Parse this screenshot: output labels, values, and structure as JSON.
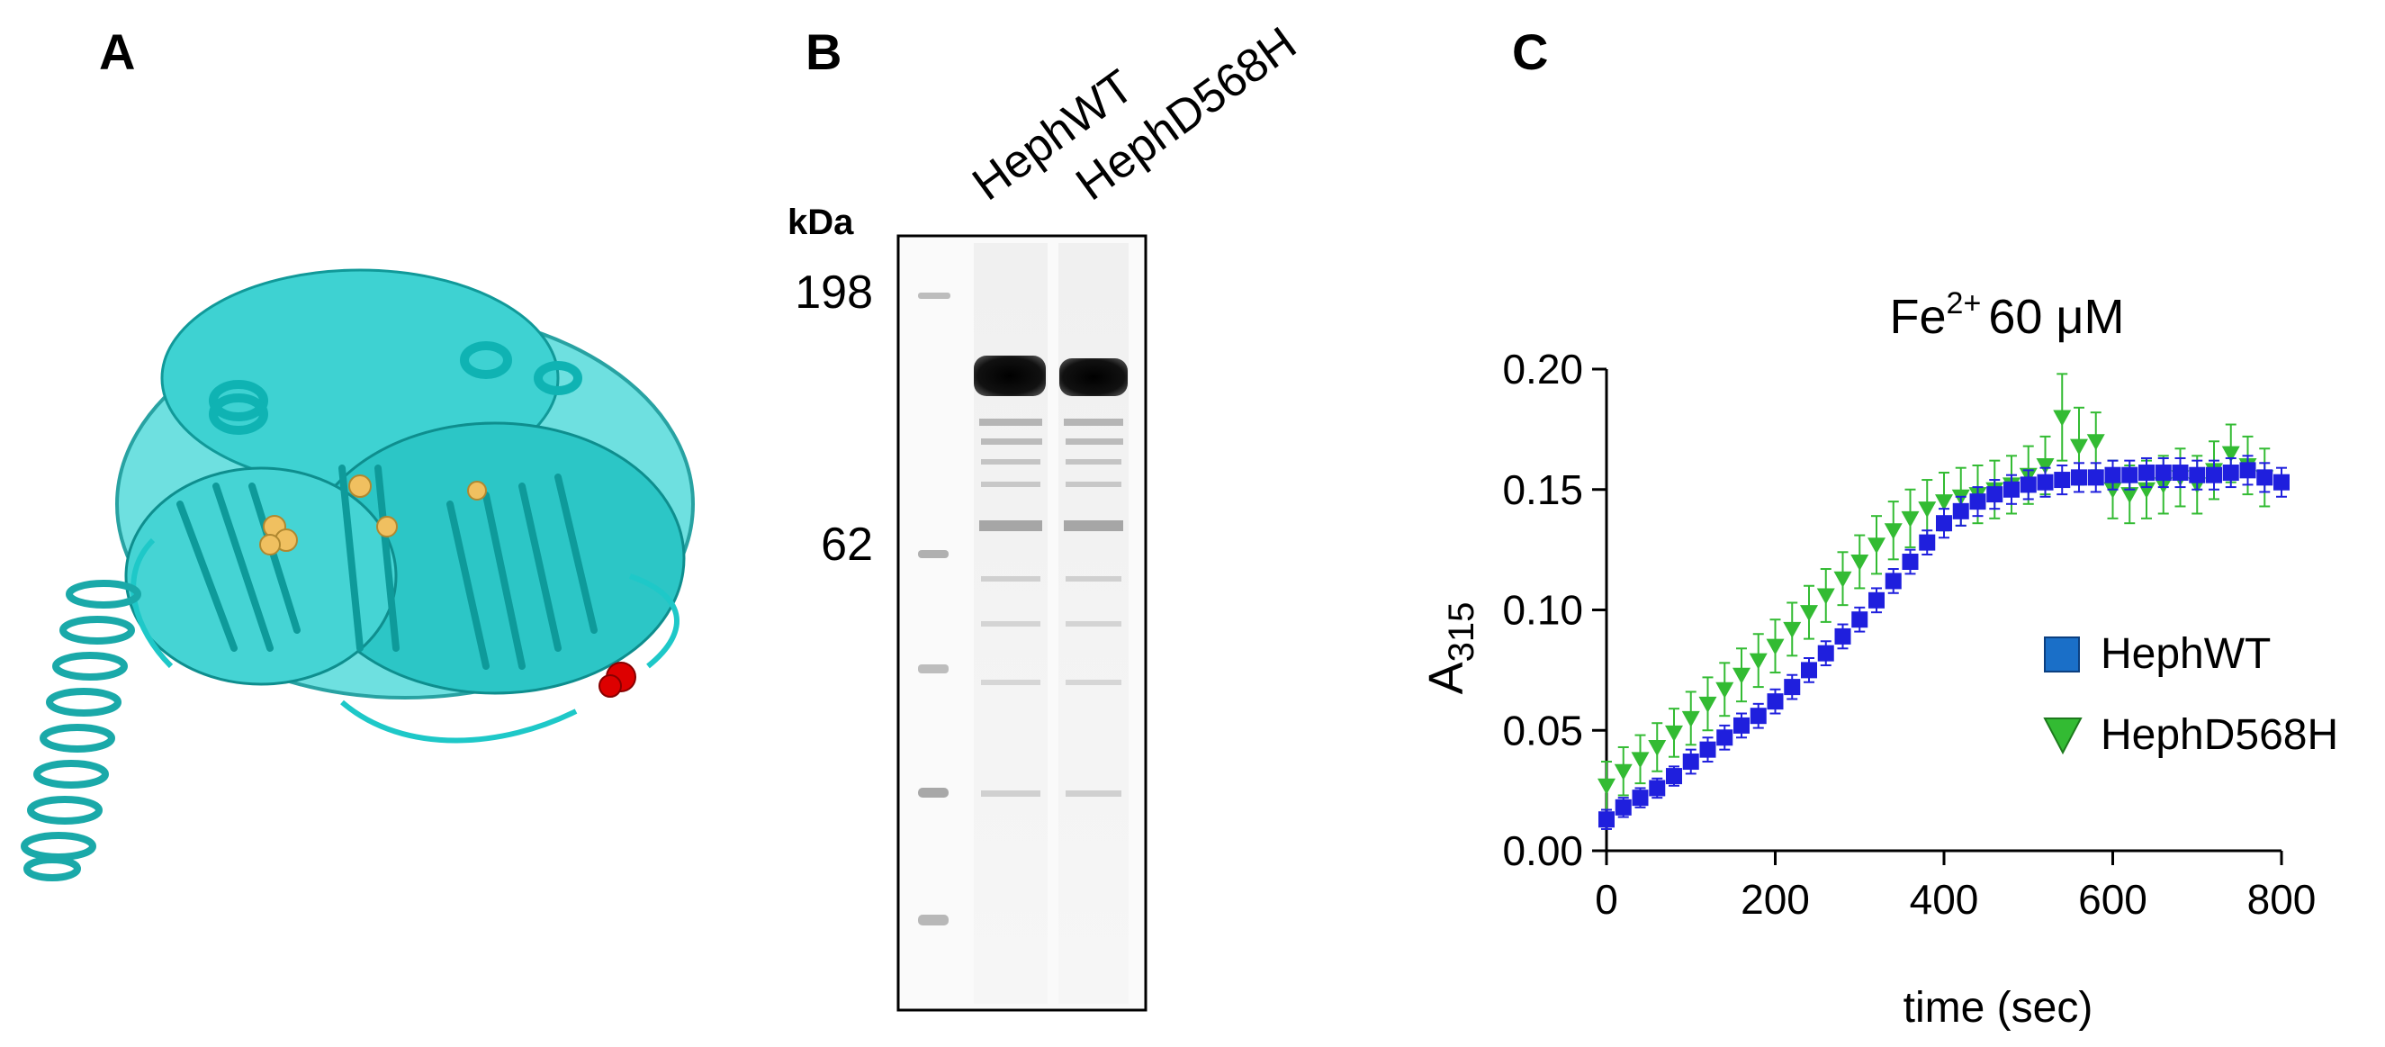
{
  "panels": {
    "a": {
      "letter": "A"
    },
    "b": {
      "letter": "B",
      "lanes": [
        "HephWT",
        "HephD568H"
      ],
      "unit": "kDa",
      "markers": [
        "198",
        "62"
      ]
    },
    "c": {
      "letter": "C"
    }
  },
  "colors": {
    "protein_cartoon": "#1ec8c8",
    "copper_sites": "#f0c060",
    "mutation_site": "#dd0000",
    "series_wt": "#1f1fdd",
    "series_mut": "#33bb33"
  },
  "chart_data": {
    "type": "scatter",
    "title_base": "Fe",
    "title_sup": "2+",
    "title_rest": "60 μM",
    "xlabel": "time (sec)",
    "ylabel_main": "A",
    "ylabel_sub": "315",
    "xlim": [
      0,
      800
    ],
    "ylim": [
      0,
      0.2
    ],
    "x_ticks": [
      "0",
      "200",
      "400",
      "600",
      "800"
    ],
    "y_ticks": [
      "0.00",
      "0.05",
      "0.10",
      "0.15",
      "0.20"
    ],
    "legend_position": "right",
    "series": [
      {
        "name": "HephWT",
        "marker": "square",
        "x": [
          0,
          20,
          40,
          60,
          80,
          100,
          120,
          140,
          160,
          180,
          200,
          220,
          240,
          260,
          280,
          300,
          320,
          340,
          360,
          380,
          400,
          420,
          440,
          460,
          480,
          500,
          520,
          540,
          560,
          580,
          600,
          620,
          640,
          660,
          680,
          700,
          720,
          740,
          760,
          780,
          800
        ],
        "y": [
          0.013,
          0.018,
          0.022,
          0.026,
          0.031,
          0.037,
          0.042,
          0.047,
          0.052,
          0.056,
          0.062,
          0.068,
          0.075,
          0.082,
          0.089,
          0.096,
          0.104,
          0.112,
          0.12,
          0.128,
          0.136,
          0.141,
          0.145,
          0.148,
          0.15,
          0.152,
          0.153,
          0.154,
          0.155,
          0.155,
          0.156,
          0.156,
          0.157,
          0.157,
          0.157,
          0.156,
          0.156,
          0.157,
          0.158,
          0.155,
          0.153
        ],
        "err": [
          0.004,
          0.004,
          0.004,
          0.004,
          0.004,
          0.005,
          0.005,
          0.005,
          0.005,
          0.005,
          0.005,
          0.005,
          0.005,
          0.005,
          0.005,
          0.005,
          0.005,
          0.005,
          0.005,
          0.005,
          0.006,
          0.006,
          0.006,
          0.006,
          0.006,
          0.006,
          0.006,
          0.006,
          0.006,
          0.006,
          0.006,
          0.006,
          0.006,
          0.006,
          0.006,
          0.006,
          0.006,
          0.006,
          0.006,
          0.006,
          0.006
        ]
      },
      {
        "name": "HephD568H",
        "marker": "triangle-down",
        "x": [
          0,
          20,
          40,
          60,
          80,
          100,
          120,
          140,
          160,
          180,
          200,
          220,
          240,
          260,
          280,
          300,
          320,
          340,
          360,
          380,
          400,
          420,
          440,
          460,
          480,
          500,
          520,
          540,
          560,
          580,
          600,
          620,
          640,
          660,
          680,
          700,
          720,
          740,
          760,
          780
        ],
        "y": [
          0.027,
          0.033,
          0.038,
          0.043,
          0.049,
          0.055,
          0.061,
          0.067,
          0.073,
          0.079,
          0.085,
          0.092,
          0.099,
          0.106,
          0.113,
          0.12,
          0.127,
          0.133,
          0.138,
          0.142,
          0.145,
          0.147,
          0.148,
          0.15,
          0.152,
          0.156,
          0.16,
          0.18,
          0.168,
          0.17,
          0.15,
          0.148,
          0.15,
          0.152,
          0.155,
          0.152,
          0.158,
          0.165,
          0.16,
          0.155
        ],
        "err": [
          0.01,
          0.01,
          0.01,
          0.01,
          0.01,
          0.011,
          0.011,
          0.011,
          0.011,
          0.011,
          0.011,
          0.011,
          0.011,
          0.011,
          0.011,
          0.011,
          0.012,
          0.012,
          0.012,
          0.012,
          0.012,
          0.012,
          0.012,
          0.012,
          0.012,
          0.012,
          0.012,
          0.018,
          0.016,
          0.012,
          0.012,
          0.012,
          0.012,
          0.012,
          0.012,
          0.012,
          0.012,
          0.012,
          0.012,
          0.012
        ]
      }
    ]
  }
}
